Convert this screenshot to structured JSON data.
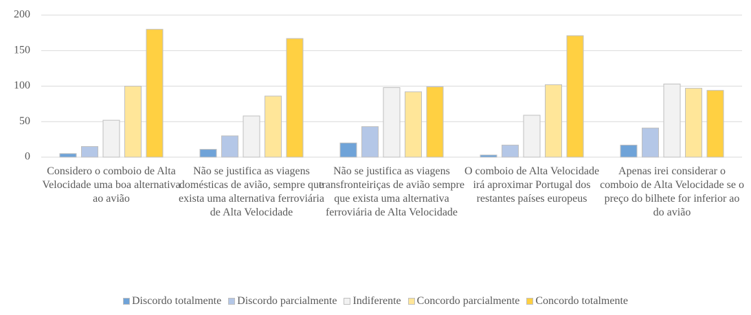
{
  "chart_data": {
    "type": "bar",
    "categories": [
      "Considero o comboio de Alta Velocidade uma boa alternativa ao avião",
      "Não se justifica as viagens domésticas de avião, sempre que exista uma alternativa ferroviária de Alta Velocidade",
      "Não se justifica as viagens transfronteiriças de avião sempre que exista uma alternativa ferroviária de Alta Velocidade",
      "O comboio de Alta Velocidade irá aproximar Portugal dos restantes países europeus",
      "Apenas irei considerar o comboio de Alta Velocidade se o preço do bilhete for inferior ao do avião"
    ],
    "series": [
      {
        "name": "Discordo totalmente",
        "color": "#6fa3d8",
        "values": [
          5,
          11,
          20,
          3,
          17
        ]
      },
      {
        "name": "Discordo parcialmente",
        "color": "#b4c7e7",
        "values": [
          15,
          30,
          43,
          17,
          41
        ]
      },
      {
        "name": "Indiferente",
        "color": "#f2f2f2",
        "values": [
          52,
          58,
          98,
          59,
          103
        ]
      },
      {
        "name": "Concordo parcialmente",
        "color": "#ffe699",
        "values": [
          100,
          86,
          92,
          102,
          97
        ]
      },
      {
        "name": "Concordo totalmente",
        "color": "#ffd042",
        "values": [
          180,
          167,
          99,
          171,
          94
        ]
      }
    ],
    "ylim": [
      0,
      200
    ],
    "yticks": [
      0,
      50,
      100,
      150,
      200
    ],
    "grid": true,
    "legend": "bottom"
  }
}
